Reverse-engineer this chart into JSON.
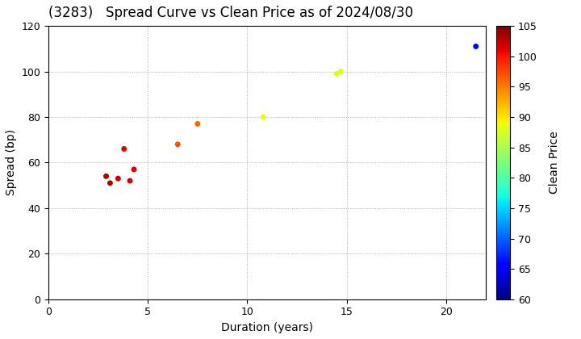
{
  "title": "(3283)   Spread Curve vs Clean Price as of 2024/08/30",
  "xlabel": "Duration (years)",
  "ylabel": "Spread (bp)",
  "colorbar_label": "Clean Price",
  "xlim": [
    0,
    22
  ],
  "ylim": [
    0,
    120
  ],
  "xticks": [
    0,
    5,
    10,
    15,
    20
  ],
  "yticks": [
    0,
    20,
    40,
    60,
    80,
    100,
    120
  ],
  "cbar_ticks": [
    60,
    65,
    70,
    75,
    80,
    85,
    90,
    95,
    100,
    105
  ],
  "cmap_min": 60,
  "cmap_max": 105,
  "points": [
    {
      "duration": 2.9,
      "spread": 54,
      "price": 103
    },
    {
      "duration": 3.1,
      "spread": 51,
      "price": 103
    },
    {
      "duration": 3.5,
      "spread": 53,
      "price": 102
    },
    {
      "duration": 3.8,
      "spread": 66,
      "price": 101
    },
    {
      "duration": 4.1,
      "spread": 52,
      "price": 102
    },
    {
      "duration": 4.3,
      "spread": 57,
      "price": 101
    },
    {
      "duration": 6.5,
      "spread": 68,
      "price": 97
    },
    {
      "duration": 7.5,
      "spread": 77,
      "price": 96
    },
    {
      "duration": 10.8,
      "spread": 80,
      "price": 89
    },
    {
      "duration": 14.5,
      "spread": 99,
      "price": 88
    },
    {
      "duration": 14.7,
      "spread": 100,
      "price": 88
    },
    {
      "duration": 21.5,
      "spread": 111,
      "price": 65
    }
  ],
  "title_fontsize": 12,
  "axis_label_fontsize": 10,
  "tick_fontsize": 9,
  "marker_size": 25,
  "background_color": "#ffffff",
  "grid_color": "#aaaaaa",
  "figsize": [
    7.2,
    4.2
  ],
  "dpi": 100
}
